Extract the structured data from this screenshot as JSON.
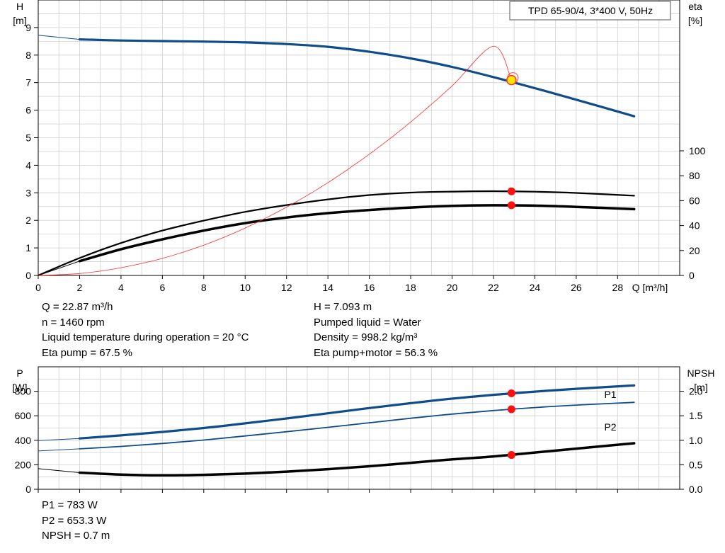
{
  "chart_data": [
    {
      "type": "line",
      "title_box": "TPD 65-90/4, 3*400 V, 50Hz",
      "xlabel": "Q [m³/h]",
      "ylabel_left": [
        "H",
        "[m]"
      ],
      "ylabel_right": [
        "eta",
        "[%]"
      ],
      "xlim": [
        0,
        31
      ],
      "ylim_left": [
        0,
        10
      ],
      "ylim_right": [
        0,
        100
      ],
      "x_ticks": [
        0,
        2,
        4,
        6,
        8,
        10,
        12,
        14,
        16,
        18,
        20,
        22,
        24,
        26,
        28
      ],
      "y_ticks_left": [
        0,
        1,
        2,
        3,
        4,
        5,
        6,
        7,
        8,
        9
      ],
      "y_ticks_right": [
        0,
        20,
        40,
        60,
        80,
        100
      ],
      "grid": true,
      "series": [
        {
          "curve": "H",
          "axis": "left",
          "color": "#0f4c8a",
          "width": 3.2,
          "x": [
            2,
            4,
            6,
            8,
            10,
            12,
            14,
            16,
            18,
            20,
            22,
            24,
            26,
            28.8
          ],
          "y": [
            8.57,
            8.53,
            8.51,
            8.49,
            8.46,
            8.4,
            8.3,
            8.12,
            7.88,
            7.57,
            7.2,
            6.8,
            6.38,
            5.78
          ]
        },
        {
          "curve": "H extension",
          "axis": "left",
          "color": "#0f4c8a",
          "width": 1,
          "x": [
            0,
            2
          ],
          "y": [
            8.72,
            8.57
          ]
        },
        {
          "curve": "Eta pump",
          "axis": "right",
          "color": "#000000",
          "width": 2.2,
          "x": [
            0,
            2,
            4,
            6,
            8,
            10,
            12,
            14,
            16,
            18,
            20,
            22,
            24,
            26,
            28.8
          ],
          "y": [
            0,
            14,
            26,
            36,
            44,
            51,
            56.5,
            61,
            64.5,
            66.5,
            67.3,
            67.6,
            67.2,
            66.2,
            64
          ]
        },
        {
          "curve": "Eta pump+motor",
          "axis": "right",
          "color": "#000000",
          "width": 3.5,
          "x": [
            2,
            4,
            6,
            8,
            10,
            12,
            14,
            16,
            18,
            20,
            22,
            24,
            26,
            28.8
          ],
          "y": [
            11.5,
            21,
            29,
            36,
            42,
            46.5,
            50,
            52.5,
            54.5,
            55.8,
            56.3,
            56,
            55,
            53.2
          ]
        },
        {
          "curve": "Eta pump+motor extension",
          "axis": "right",
          "color": "#000000",
          "width": 1,
          "x": [
            0,
            2
          ],
          "y": [
            0,
            11.5
          ]
        },
        {
          "curve": "System curve",
          "axis": "left",
          "color": "#ff2a2a",
          "width": 0.8,
          "x": [
            0,
            2,
            4,
            6,
            8,
            10,
            12,
            14,
            16,
            18,
            20,
            22,
            22.87
          ],
          "y": [
            0,
            0.07,
            0.28,
            0.62,
            1.1,
            1.72,
            2.48,
            3.37,
            4.4,
            5.57,
            6.88,
            8.32,
            7.093
          ]
        }
      ],
      "duty_point": {
        "x": 22.87,
        "H": 7.093,
        "eta_pump": 67.5,
        "eta_pump_motor": 56.3
      }
    },
    {
      "type": "line",
      "ylabel_left": [
        "P",
        "[W]"
      ],
      "ylabel_right": [
        "NPSH",
        "[m]"
      ],
      "xlim": [
        0,
        31
      ],
      "ylim_left": [
        0,
        1000
      ],
      "ylim_right": [
        0,
        2.5
      ],
      "y_ticks_left": [
        0,
        200,
        400,
        600,
        800
      ],
      "y_ticks_right": [
        "0.0",
        "0.5",
        "1.0",
        "1.5",
        "2.0"
      ],
      "grid": true,
      "series": [
        {
          "name": "P1",
          "axis": "left",
          "color": "#0f4c8a",
          "width": 3.2,
          "x": [
            2,
            4,
            6,
            8,
            10,
            12,
            14,
            16,
            18,
            20,
            22,
            24,
            26,
            28.8
          ],
          "y": [
            415,
            440,
            468,
            500,
            538,
            578,
            620,
            663,
            703,
            740,
            771,
            797,
            820,
            848
          ]
        },
        {
          "name": "P2",
          "axis": "left",
          "color": "#0f4c8a",
          "width": 1.8,
          "x": [
            2,
            4,
            6,
            8,
            10,
            12,
            14,
            16,
            18,
            20,
            22,
            24,
            26,
            28.8
          ],
          "y": [
            330,
            350,
            374,
            402,
            435,
            470,
            506,
            543,
            580,
            614,
            643,
            667,
            687,
            710
          ]
        },
        {
          "curve": "P1 extension",
          "axis": "left",
          "color": "#0f4c8a",
          "width": 1,
          "x": [
            0,
            2
          ],
          "y": [
            397,
            415
          ]
        },
        {
          "curve": "P2 extension",
          "axis": "left",
          "color": "#0f4c8a",
          "width": 1,
          "x": [
            0,
            2
          ],
          "y": [
            313,
            330
          ]
        },
        {
          "curve": "NPSH",
          "axis": "right",
          "color": "#000000",
          "width": 3.5,
          "x": [
            2,
            4,
            6,
            8,
            10,
            12,
            14,
            16,
            18,
            20,
            22,
            24,
            26,
            28.8
          ],
          "y": [
            0.34,
            0.3,
            0.285,
            0.295,
            0.32,
            0.36,
            0.41,
            0.47,
            0.54,
            0.61,
            0.67,
            0.75,
            0.83,
            0.94
          ]
        },
        {
          "curve": "NPSH extension",
          "axis": "right",
          "color": "#000000",
          "width": 1,
          "x": [
            0,
            2
          ],
          "y": [
            0.42,
            0.34
          ]
        }
      ],
      "duty_point": {
        "x": 22.87,
        "P1": 783,
        "P2": 653.3,
        "NPSH": 0.7
      }
    }
  ],
  "readouts_top": {
    "left": [
      "Q = 22.87 m³/h",
      "n = 1460 rpm",
      "Liquid temperature during operation = 20 °C",
      "Eta pump = 67.5 %"
    ],
    "right": [
      "H = 7.093 m",
      "Pumped liquid = Water",
      "Density = 998.2 kg/m³",
      "Eta pump+motor = 56.3 %"
    ]
  },
  "readouts_bottom": [
    "P1 = 783 W",
    "P2 = 653.3 W",
    "NPSH = 0.7 m"
  ]
}
